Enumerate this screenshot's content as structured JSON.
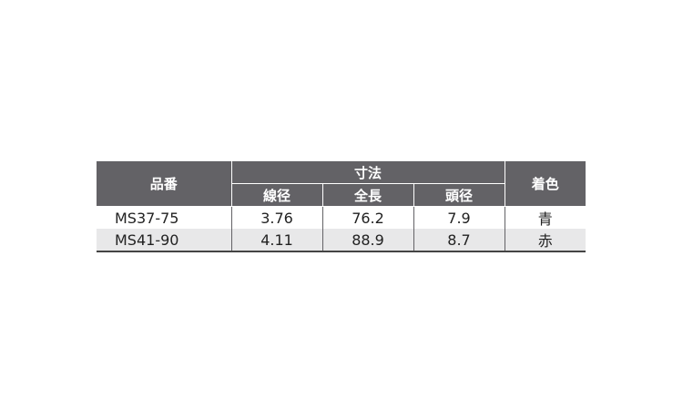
{
  "table": {
    "headers": {
      "part_no": "品番",
      "dimensions": "寸法",
      "wire_dia": "線径",
      "length": "全長",
      "head_dia": "頭径",
      "color": "着色"
    },
    "rows": [
      {
        "part_no": "MS37-75",
        "wire_dia": "3.76",
        "length": "76.2",
        "head_dia": "7.9",
        "color": "青"
      },
      {
        "part_no": "MS41-90",
        "wire_dia": "4.11",
        "length": "88.9",
        "head_dia": "8.7",
        "color": "赤"
      }
    ]
  },
  "colors": {
    "header_bg": "#636266",
    "alt_row_bg": "#e8e8e9"
  }
}
